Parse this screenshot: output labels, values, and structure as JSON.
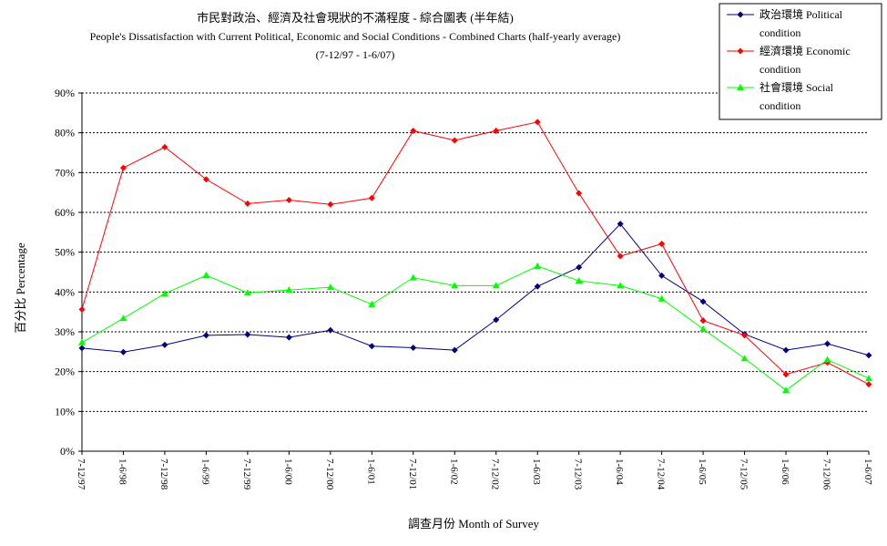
{
  "chart_data": {
    "type": "line",
    "title": "市民對政治、經濟及社會現狀的不滿程度 - 綜合圖表 (半年結)",
    "subtitle": "People's Dissatisfaction with Current Political, Economic and Social Conditions - Combined Charts  (half-yearly average)",
    "period": "(7-12/97 - 1-6/07)",
    "xlabel": "調查月份 Month of Survey",
    "ylabel": "百分比 Percentage",
    "ylim": [
      0,
      90
    ],
    "yticks": [
      0,
      10,
      20,
      30,
      40,
      50,
      60,
      70,
      80,
      90
    ],
    "ytick_labels": [
      "0%",
      "10%",
      "20%",
      "30%",
      "40%",
      "50%",
      "60%",
      "70%",
      "80%",
      "90%"
    ],
    "grid": true,
    "legend_position": "top-right",
    "categories": [
      "7-12/97",
      "1-6/98",
      "7-12/98",
      "1-6/99",
      "7-12/99",
      "1-6/00",
      "7-12/00",
      "1-6/01",
      "7-12/01",
      "1-6/02",
      "7-12/02",
      "1-6/03",
      "7-12/03",
      "1-6/04",
      "7-12/04",
      "1-6/05",
      "7-12/05",
      "1-6/06",
      "7-12/06",
      "1-6/07"
    ],
    "series": [
      {
        "name": "政治環境 Political condition",
        "name_lines": [
          "政治環境 Political",
          "condition"
        ],
        "color": "#000080",
        "marker": "diamond",
        "values": [
          25.9,
          24.9,
          26.7,
          29.1,
          29.3,
          28.6,
          30.4,
          26.4,
          26.0,
          25.4,
          33.0,
          41.4,
          46.2,
          57.1,
          44.1,
          37.6,
          29.4,
          25.4,
          27.0,
          24.1
        ]
      },
      {
        "name": "經濟環境 Economic condition",
        "name_lines": [
          "經濟環境 Economic",
          "condition"
        ],
        "color": "#ff0000",
        "marker": "diamond",
        "values": [
          35.6,
          71.2,
          76.4,
          68.3,
          62.2,
          63.1,
          62.0,
          63.6,
          80.5,
          78.1,
          80.5,
          82.7,
          64.8,
          49.0,
          52.1,
          32.8,
          29.1,
          19.3,
          22.3,
          16.8
        ]
      },
      {
        "name": "社會環境 Social condition",
        "name_lines": [
          "社會環境 Social",
          "condition"
        ],
        "color": "#00ff00",
        "marker": "triangle",
        "values": [
          27.3,
          33.4,
          39.6,
          44.2,
          39.8,
          40.5,
          41.2,
          36.9,
          43.6,
          41.6,
          41.6,
          46.5,
          42.8,
          41.6,
          38.3,
          30.7,
          23.3,
          15.3,
          23.0,
          18.3
        ]
      }
    ]
  }
}
